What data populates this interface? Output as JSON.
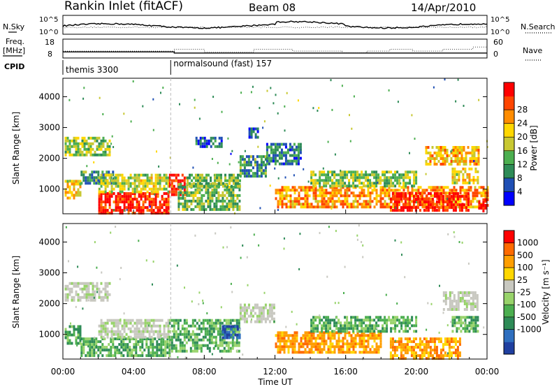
{
  "header": {
    "station": "Rankin Inlet (fitACF)",
    "beam": "Beam 08",
    "date": "14/Apr/2010"
  },
  "chart_data": [
    {
      "type": "line",
      "name": "noise",
      "left_label": "N.Sky",
      "right_label": "N.Search",
      "left_ticks": [
        "10^5",
        "10^0"
      ],
      "right_ticks": [
        "10^5",
        "10^0"
      ]
    },
    {
      "type": "line",
      "name": "frequency",
      "left_label_1": "Freq.",
      "left_label_2": "[MHz]",
      "right_label": "Nave",
      "left_ticks": [
        "18",
        "8"
      ],
      "right_ticks": [
        "60",
        "0"
      ],
      "ylim": [
        8,
        18
      ],
      "freq_steps": [
        [
          0,
          11.2
        ],
        [
          6.3,
          10.6
        ],
        [
          24,
          10.6
        ]
      ],
      "nave_steps": [
        [
          0,
          22
        ],
        [
          6.3,
          28
        ],
        [
          8,
          18
        ],
        [
          10.8,
          28
        ],
        [
          13,
          22
        ],
        [
          15.8,
          16
        ],
        [
          17.2,
          22
        ],
        [
          18.5,
          28
        ],
        [
          19.8,
          22
        ],
        [
          21.5,
          28
        ],
        [
          23.2,
          35
        ],
        [
          24,
          28
        ]
      ]
    },
    {
      "type": "table",
      "name": "cpid",
      "label": "CPID",
      "segments": [
        {
          "start": 0,
          "end": 6.1,
          "label": "themis 3300"
        },
        {
          "start": 6.1,
          "end": 24,
          "label": "normalsound (fast) 157"
        }
      ]
    },
    {
      "type": "heatmap",
      "name": "power",
      "ylabel": "Slant Range [km]",
      "ylim": [
        200,
        4600
      ],
      "yticks": [
        1000,
        2000,
        3000,
        4000
      ],
      "colorbar_label": "Power [dB]",
      "colorbar_ticks": [
        4,
        8,
        12,
        16,
        20,
        24,
        28
      ],
      "colorbar_colors": [
        "#0000ff",
        "#1f4fb4",
        "#2e8b57",
        "#4caf50",
        "#c8c832",
        "#ffd700",
        "#ff8c00",
        "#ff4500",
        "#ff0000"
      ],
      "cutline_hour": 6.1,
      "patches": [
        {
          "t": [
            0.1,
            2.6
          ],
          "r": [
            2100,
            2700
          ],
          "level": 0.45
        },
        {
          "t": [
            0.1,
            1.0
          ],
          "r": [
            700,
            1300
          ],
          "level": 0.6
        },
        {
          "t": [
            1.0,
            3.0
          ],
          "r": [
            1200,
            1600
          ],
          "level": 0.3
        },
        {
          "t": [
            2.0,
            6.0
          ],
          "r": [
            250,
            900
          ],
          "level": 0.92
        },
        {
          "t": [
            2.0,
            6.0
          ],
          "r": [
            900,
            1500
          ],
          "level": 0.5
        },
        {
          "t": [
            6.0,
            7.0
          ],
          "r": [
            800,
            1500
          ],
          "level": 0.9
        },
        {
          "t": [
            6.5,
            10.0
          ],
          "r": [
            300,
            1200
          ],
          "level": 0.4
        },
        {
          "t": [
            7.0,
            10.0
          ],
          "r": [
            1100,
            1500
          ],
          "level": 0.4
        },
        {
          "t": [
            7.5,
            9.0
          ],
          "r": [
            2400,
            2700
          ],
          "level": 0.2
        },
        {
          "t": [
            10.0,
            11.5
          ],
          "r": [
            1400,
            2100
          ],
          "level": 0.3
        },
        {
          "t": [
            10.5,
            11.0
          ],
          "r": [
            2700,
            3000
          ],
          "level": 0.2
        },
        {
          "t": [
            11.5,
            13.5
          ],
          "r": [
            1800,
            2500
          ],
          "level": 0.25
        },
        {
          "t": [
            12.0,
            24.0
          ],
          "r": [
            400,
            1100
          ],
          "level": 0.7
        },
        {
          "t": [
            14.0,
            20.0
          ],
          "r": [
            1100,
            1600
          ],
          "level": 0.45
        },
        {
          "t": [
            18.5,
            23.0
          ],
          "r": [
            300,
            900
          ],
          "level": 0.92
        },
        {
          "t": [
            20.5,
            23.5
          ],
          "r": [
            1800,
            2400
          ],
          "level": 0.65
        },
        {
          "t": [
            22.0,
            23.5
          ],
          "r": [
            1200,
            1700
          ],
          "level": 0.6
        },
        {
          "t": [
            23.5,
            24.0
          ],
          "r": [
            250,
            700
          ],
          "level": 0.95
        }
      ]
    },
    {
      "type": "heatmap",
      "name": "velocity",
      "ylabel": "Slant Range [km]",
      "ylim": [
        200,
        4600
      ],
      "yticks": [
        1000,
        2000,
        3000,
        4000
      ],
      "colorbar_label": "Velocity [m s⁻¹]",
      "colorbar_ticks": [
        1000,
        500,
        100,
        25,
        -25,
        -100,
        -500,
        -1000
      ],
      "colorbar_colors": [
        "#1f3fa0",
        "#2f6fbf",
        "#2e8b57",
        "#4caf50",
        "#98d36a",
        "#c8c8c0",
        "#ffd700",
        "#ff9e00",
        "#ff6a00",
        "#ff0000"
      ],
      "xlabel": "Time UT",
      "xticks": [
        "00:00",
        "04:00",
        "08:00",
        "12:00",
        "16:00",
        "20:00",
        "00:00"
      ],
      "cutline_hour": 6.1,
      "patches": [
        {
          "t": [
            0.1,
            2.6
          ],
          "r": [
            2100,
            2700
          ],
          "kind": "gray"
        },
        {
          "t": [
            0.1,
            1.0
          ],
          "r": [
            700,
            1300
          ],
          "kind": "green"
        },
        {
          "t": [
            1.0,
            6.0
          ],
          "r": [
            300,
            900
          ],
          "kind": "green"
        },
        {
          "t": [
            2.0,
            6.0
          ],
          "r": [
            900,
            1500
          ],
          "kind": "gray"
        },
        {
          "t": [
            6.0,
            10.0
          ],
          "r": [
            500,
            1500
          ],
          "kind": "green"
        },
        {
          "t": [
            9.0,
            10.0
          ],
          "r": [
            900,
            1300
          ],
          "kind": "blue"
        },
        {
          "t": [
            10.0,
            12.0
          ],
          "r": [
            1400,
            2000
          ],
          "kind": "gray"
        },
        {
          "t": [
            12.0,
            18.0
          ],
          "r": [
            400,
            1100
          ],
          "kind": "orange"
        },
        {
          "t": [
            14.0,
            20.0
          ],
          "r": [
            1100,
            1600
          ],
          "kind": "green"
        },
        {
          "t": [
            18.5,
            22.5
          ],
          "r": [
            250,
            900
          ],
          "kind": "orange"
        },
        {
          "t": [
            21.5,
            23.5
          ],
          "r": [
            1800,
            2400
          ],
          "kind": "gray"
        },
        {
          "t": [
            22.0,
            23.5
          ],
          "r": [
            1100,
            1600
          ],
          "kind": "green"
        }
      ]
    }
  ]
}
